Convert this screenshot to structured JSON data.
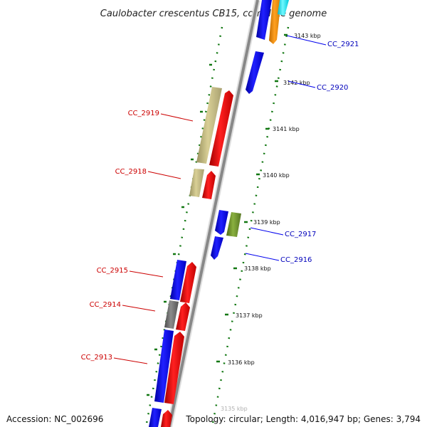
{
  "title": "Caulobacter crescentus CB15, complete genome",
  "footer": {
    "accession": "Accession: NC_002696",
    "summary": "Topology: circular; Length: 4,016,947 bp; Genes: 3,794"
  },
  "colors": {
    "forward": "#ee0000",
    "reverse": "#0000ee",
    "backbone": "#888888",
    "tick": "#117711"
  },
  "ticks": [
    "3143 kbp",
    "3142 kbp",
    "3141 kbp",
    "3140 kbp",
    "3139 kbp",
    "3138 kbp",
    "3137 kbp",
    "3136 kbp",
    "3135 kbp"
  ],
  "genes_forward_labels": [
    "CC_2919",
    "CC_2918",
    "CC_2915",
    "CC_2914",
    "CC_2913"
  ],
  "genes_reverse_labels": [
    "CC_2921",
    "CC_2920",
    "CC_2917",
    "CC_2916"
  ]
}
